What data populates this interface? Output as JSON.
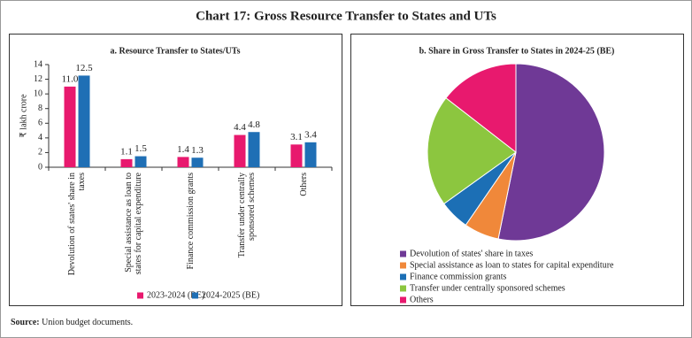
{
  "title": "Chart 17: Gross Resource Transfer to States and UTs",
  "source": {
    "label": "Source:",
    "text": "Union budget documents."
  },
  "chart_data": [
    {
      "type": "bar",
      "title": "a. Resource Transfer to States/UTs",
      "ylabel": "₹ lakh crore",
      "categories": [
        "Devolution of states' share in taxes",
        "Special assistance as loan to states for capital expenditure",
        "Finance commission grants",
        "Transfer under centrally sponsored schemes",
        "Others"
      ],
      "series": [
        {
          "name": "2023-2024 (RE)",
          "color": "#e8196e",
          "values": [
            11,
            1.1,
            1.4,
            4.4,
            3.1
          ],
          "value_labels": [
            "11.0",
            "1.1",
            "1.4",
            "4.4",
            "3.1"
          ]
        },
        {
          "name": "2024-2025 (BE)",
          "color": "#1f6fb5",
          "values": [
            12.5,
            1.5,
            1.3,
            4.8,
            3.4
          ],
          "value_labels": [
            "12.5",
            "1.5",
            "1.3",
            "4.8",
            "3.4"
          ]
        }
      ],
      "ylim": [
        0,
        14
      ],
      "yticks": [
        0,
        2,
        4,
        6,
        8,
        10,
        12,
        14
      ],
      "grid": false,
      "legend": "bottom"
    },
    {
      "type": "pie",
      "title": "b. Share in Gross Transfer to States in 2024-25 (BE)",
      "categories": [
        "Devolution of states' share in taxes",
        "Special assistance as loan to states for capital expenditure",
        "Finance commission grants",
        "Transfer under centrally sponsored schemes",
        "Others"
      ],
      "values": [
        53.2,
        6.4,
        5.5,
        20.4,
        14.5
      ],
      "colors": [
        "#6f3996",
        "#f0883a",
        "#1c6fb5",
        "#8cc63f",
        "#e8196e"
      ],
      "legend": "bottom"
    }
  ]
}
